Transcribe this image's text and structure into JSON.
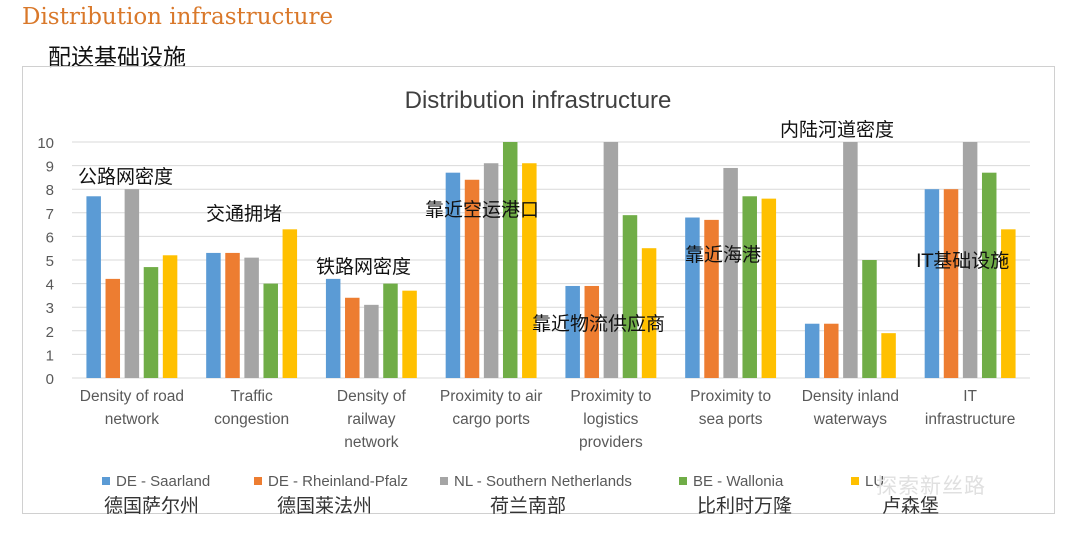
{
  "slide": {
    "title": "Distribution infrastructure",
    "subtitle": "配送基础设施",
    "watermark": "探索新丝路"
  },
  "chart_data": {
    "type": "bar",
    "title": "Distribution infrastructure",
    "ylim": [
      0,
      10
    ],
    "yticks": [
      0,
      1,
      2,
      3,
      4,
      5,
      6,
      7,
      8,
      9,
      10
    ],
    "grid": true,
    "legend_position": "bottom",
    "categories": [
      "Density of road network",
      "Traffic congestion",
      "Density of railway network",
      "Proximity to air cargo ports",
      "Proximity to logistics providers",
      "Proximity to sea ports",
      "Density inland waterways",
      "IT infrastructure"
    ],
    "category_lines": [
      [
        "Density of road",
        "network"
      ],
      [
        "Traffic",
        "congestion"
      ],
      [
        "Density of",
        "railway",
        "network"
      ],
      [
        "Proximity to air",
        "cargo ports"
      ],
      [
        "Proximity to",
        "logistics",
        "providers"
      ],
      [
        "Proximity to",
        "sea ports"
      ],
      [
        "Density inland",
        "waterways"
      ],
      [
        "IT",
        "infrastructure"
      ]
    ],
    "annotations": [
      "公路网密度",
      "交通拥堵",
      "铁路网密度",
      "靠近空运港口",
      "靠近物流供应商",
      "靠近海港",
      "内陆河道密度",
      "IT基础设施"
    ],
    "series": [
      {
        "name": "DE - Saarland",
        "name_cn": "德国萨尔州",
        "color": "#5b9bd5",
        "values": [
          7.7,
          5.3,
          4.2,
          8.7,
          3.9,
          6.8,
          2.3,
          8.0
        ]
      },
      {
        "name": "DE - Rheinland-Pfalz",
        "name_cn": "德国莱法州",
        "color": "#ed7d31",
        "values": [
          4.2,
          5.3,
          3.4,
          8.4,
          3.9,
          6.7,
          2.3,
          8.0
        ]
      },
      {
        "name": "NL - Southern Netherlands",
        "name_cn": "荷兰南部",
        "color": "#a5a5a5",
        "values": [
          8.0,
          5.1,
          3.1,
          9.1,
          10.0,
          8.9,
          10.0,
          10.0
        ]
      },
      {
        "name": "BE - Wallonia",
        "name_cn": "比利时万隆",
        "color": "#70ad47",
        "values": [
          4.7,
          4.0,
          4.0,
          10.0,
          6.9,
          7.7,
          5.0,
          8.7
        ]
      },
      {
        "name": "LU",
        "name_cn": "卢森堡",
        "color": "#ffc000",
        "values": [
          5.2,
          6.3,
          3.7,
          9.1,
          5.5,
          7.6,
          1.9,
          6.3
        ]
      }
    ]
  }
}
